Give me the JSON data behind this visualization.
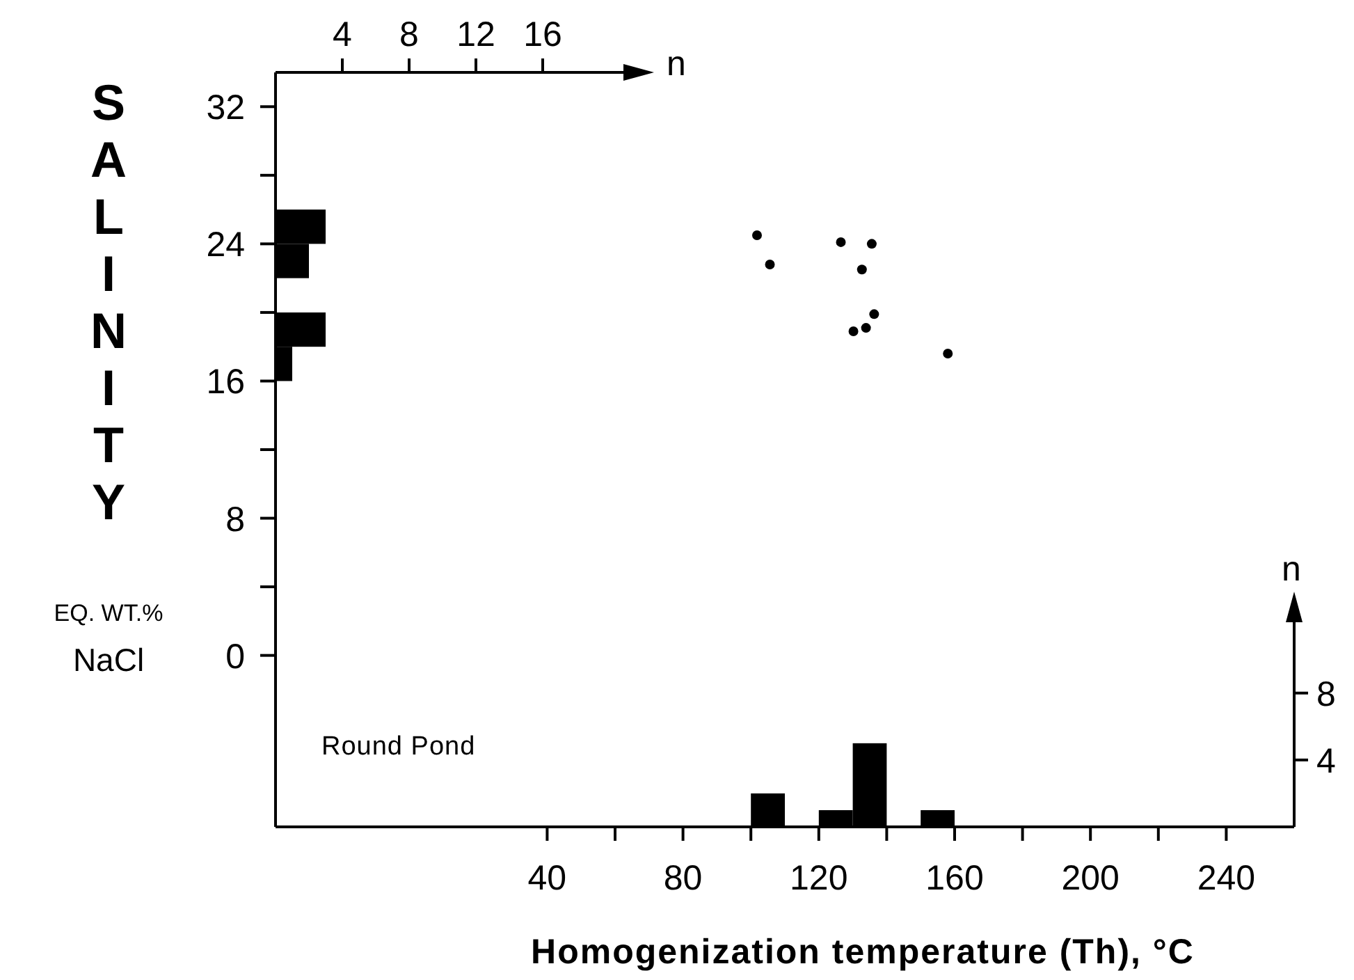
{
  "chart_data": [
    {
      "type": "scatter",
      "xlabel": "Homogenization temperature (Th), °C",
      "ylabel": "SALINITY",
      "annotations": [
        "EQ. WT.%",
        "NaCl"
      ],
      "marker": "circle",
      "x": [
        101.8,
        105.6,
        126.5,
        135.6,
        132.7,
        136.3,
        130.2,
        133.9,
        158
      ],
      "values": [
        24.5,
        22.8,
        24.1,
        24.0,
        22.5,
        19.9,
        18.9,
        19.1,
        17.6
      ],
      "color": "#000000",
      "xlim": [
        -40,
        260
      ],
      "xticks": [
        40,
        {
          "value": 60,
          "label": null
        },
        80,
        {
          "value": 100,
          "label": null
        },
        120,
        {
          "value": 140,
          "label": null
        },
        160,
        {
          "value": 180,
          "label": null
        },
        200,
        {
          "value": 220,
          "label": null
        },
        240
      ],
      "ylim": [
        -10,
        34
      ],
      "yticks": [
        0,
        {
          "value": 4,
          "label": null
        },
        8,
        {
          "value": 12,
          "label": null
        },
        16,
        {
          "value": 20,
          "label": null
        },
        24,
        {
          "value": 28,
          "label": null
        },
        32
      ]
    },
    {
      "type": "histogram",
      "ylabel": "n",
      "annotations": [
        "Round Pond"
      ],
      "bins": [
        100,
        110,
        120,
        130,
        140,
        150,
        160
      ],
      "values": [
        2,
        0,
        1,
        5,
        0,
        1
      ],
      "color": "#000000",
      "xlim": [
        -40,
        260
      ],
      "ylim": [
        0,
        12.4
      ],
      "yticks": [
        4,
        8
      ],
      "tick_labels": "y"
    },
    {
      "type": "histogram",
      "orientation": "horizontal",
      "xlabel": "n",
      "bins": [
        16,
        18,
        20,
        22,
        24,
        26
      ],
      "values": [
        1,
        3,
        0,
        2,
        3
      ],
      "color": "#000000",
      "xlim": [
        0,
        21
      ],
      "xticks": [
        4,
        8,
        12,
        16
      ],
      "ylim": [
        -10,
        34
      ],
      "tick_labels": "x"
    }
  ]
}
